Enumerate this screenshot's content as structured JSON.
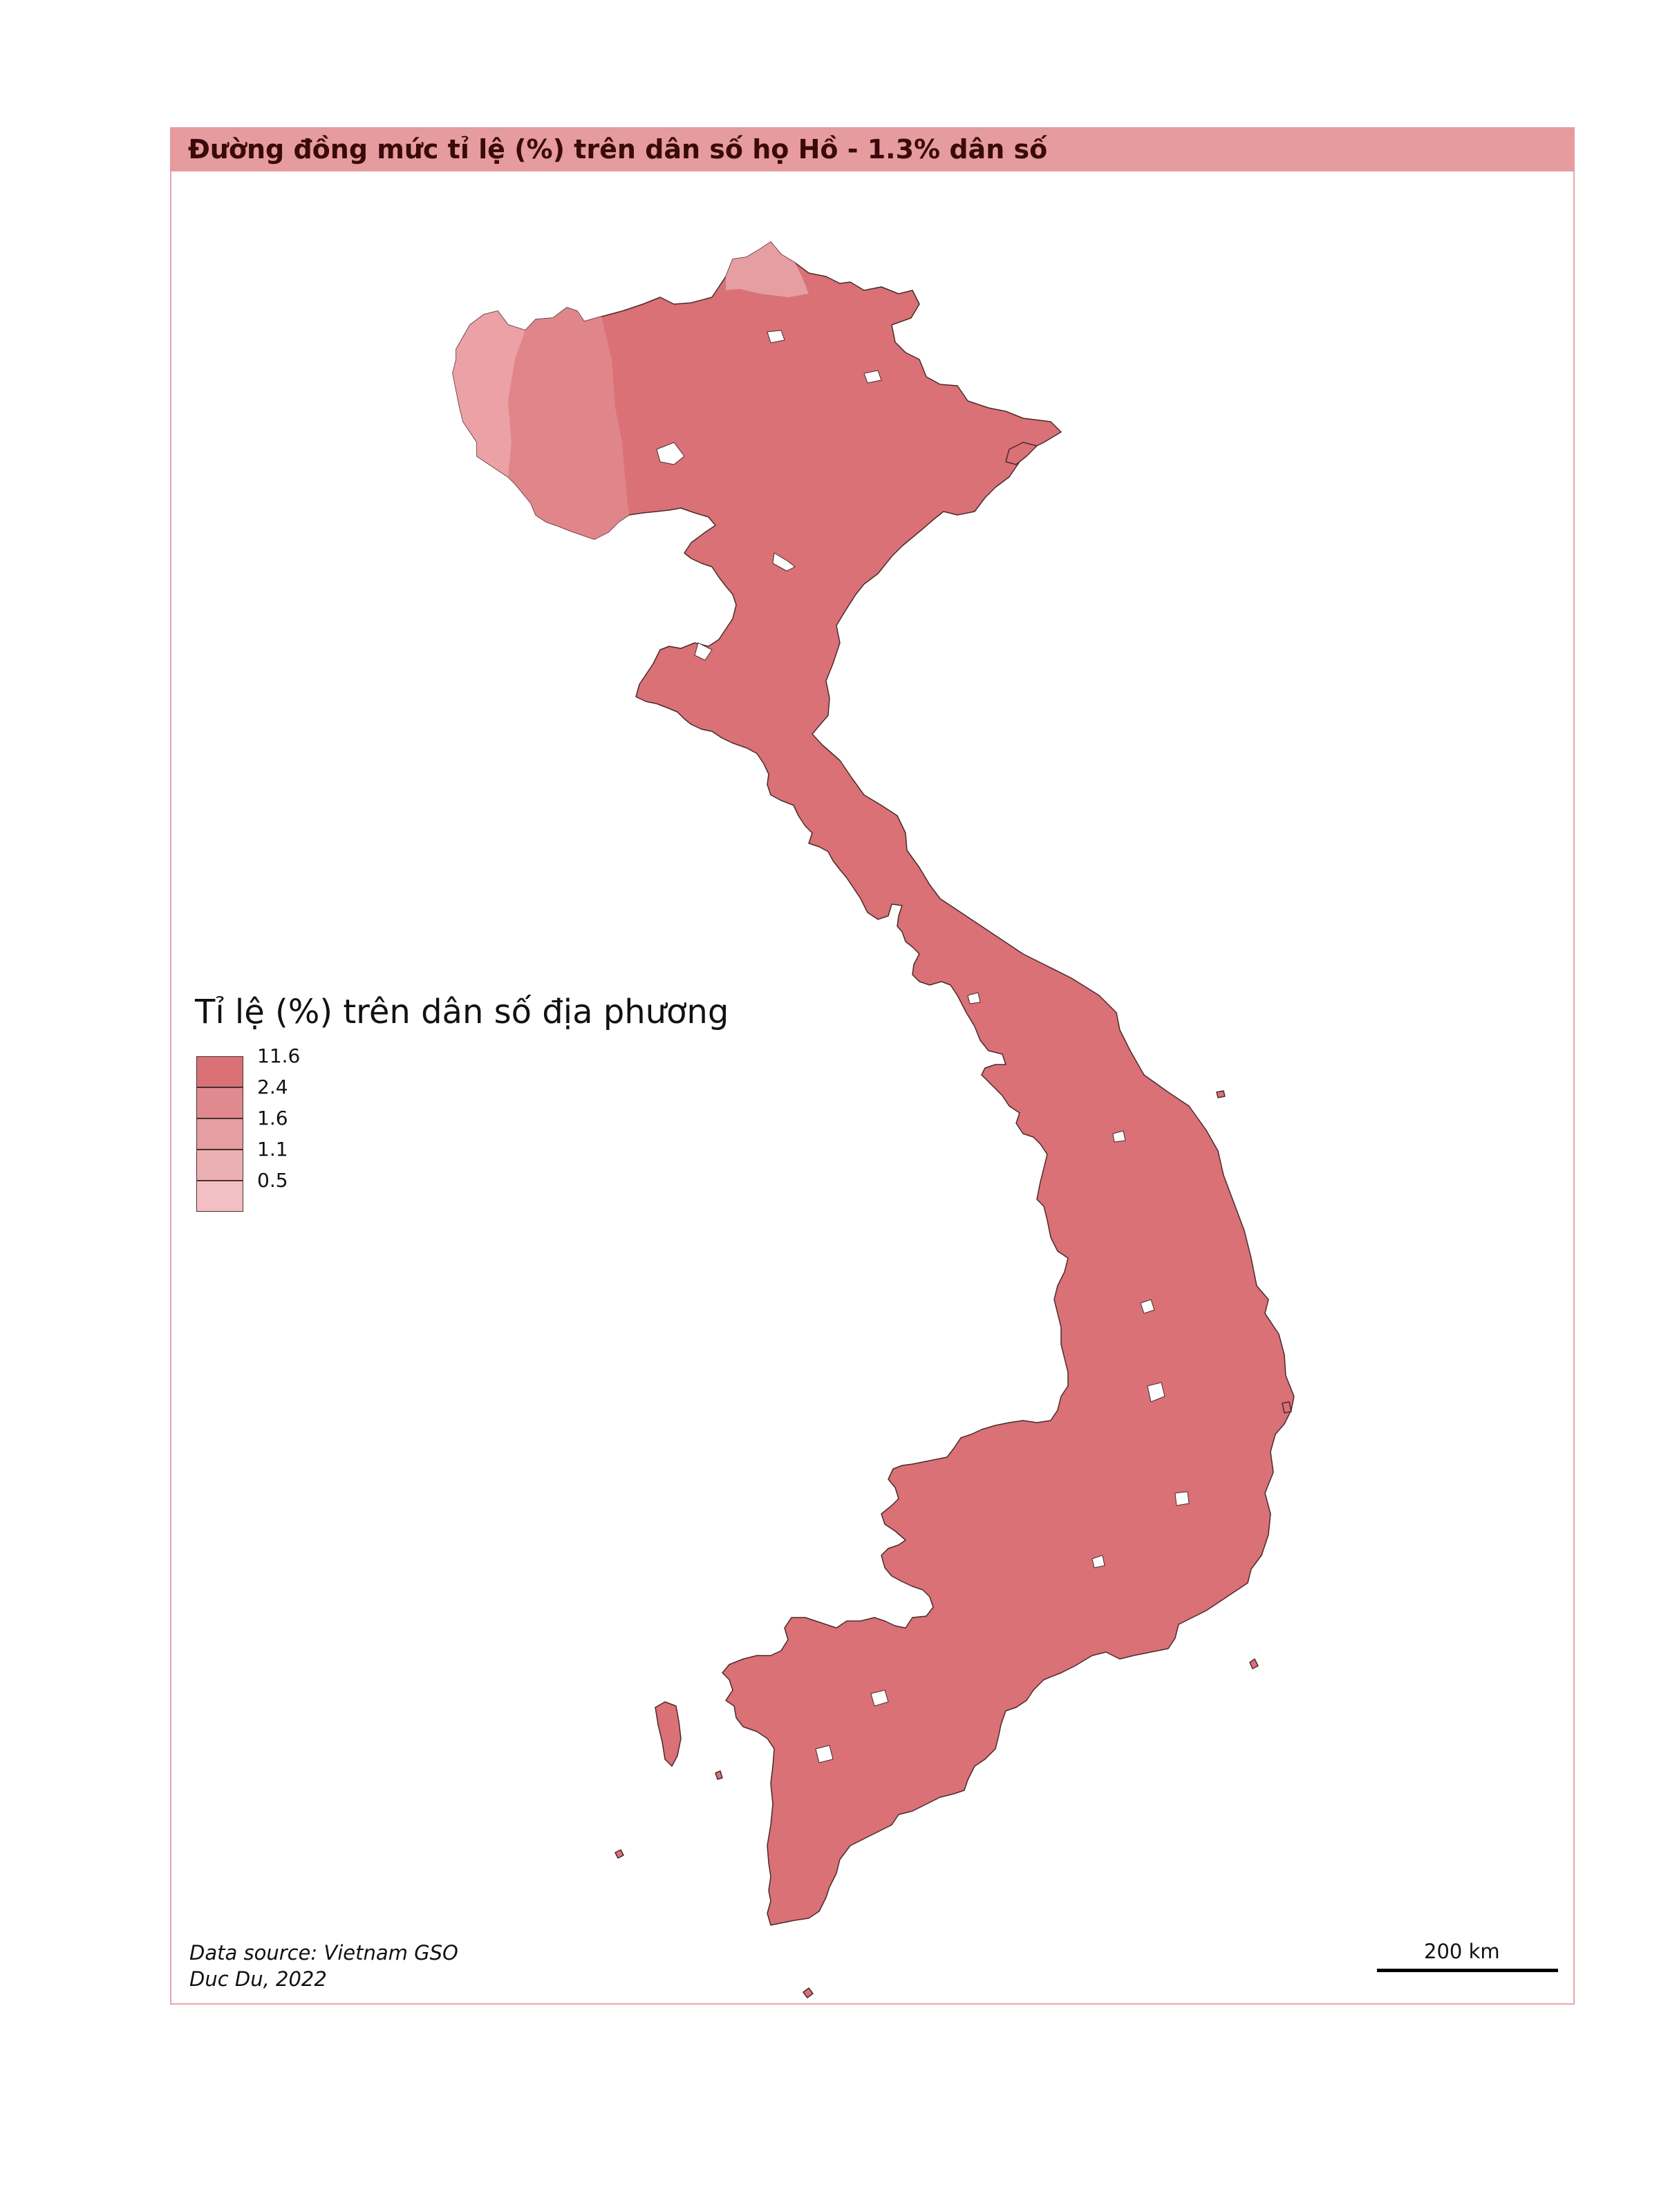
{
  "map": {
    "title": "Đường đồng mức tỉ lệ (%) trên dân số họ Hồ - 1.3% dân số",
    "region": "Vietnam",
    "dominant_class_color": "#d97177",
    "legend": {
      "title": "Tỉ lệ (%) trên dân số địa phương",
      "classes": [
        {
          "label": "11.6",
          "color": "#d97177"
        },
        {
          "label": "2.4",
          "color": "#e08a8f"
        },
        {
          "label": "1.6",
          "color": "#e59ea2"
        },
        {
          "label": "1.1",
          "color": "#ebb0b3"
        },
        {
          "label": "0.5",
          "color": "#f2c0c2"
        }
      ]
    },
    "source_line_1": "Data source: Vietnam GSO",
    "source_line_2": "Duc Du, 2022",
    "scale_label": "200 km",
    "colors": {
      "title_bar": "#e69b9f",
      "frame": "#e9a6ab",
      "outline": "#4a2a2a"
    }
  }
}
